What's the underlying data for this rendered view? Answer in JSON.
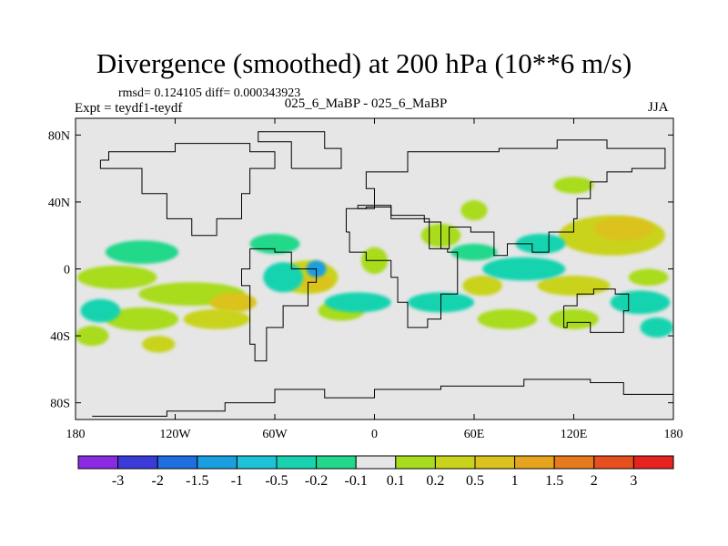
{
  "chart_data": {
    "type": "heatmap",
    "title": "Divergence (smoothed) at 200 hPa (10**6 m/s)",
    "stats_text": "rmsd= 0.124105 diff= 0.000343923",
    "experiment_text": "Expt = teydf1-teydf",
    "subtitle": "025_6_MaBP - 025_6_MaBP",
    "season": "JJA",
    "x_range": [
      -180,
      180
    ],
    "y_range": [
      -90,
      90
    ],
    "x_ticks": [
      {
        "value": -180,
        "label": "180"
      },
      {
        "value": -120,
        "label": "120W"
      },
      {
        "value": -60,
        "label": "60W"
      },
      {
        "value": 0,
        "label": "0"
      },
      {
        "value": 60,
        "label": "60E"
      },
      {
        "value": 120,
        "label": "120E"
      },
      {
        "value": 180,
        "label": "180"
      }
    ],
    "y_ticks": [
      {
        "value": 80,
        "label": "80N"
      },
      {
        "value": 40,
        "label": "40N"
      },
      {
        "value": 0,
        "label": "0"
      },
      {
        "value": -40,
        "label": "40S"
      },
      {
        "value": -80,
        "label": "80S"
      }
    ],
    "colorbar": {
      "colors": [
        "#8a2be2",
        "#3b3bd9",
        "#1f6fe0",
        "#1a9fe0",
        "#1fc3d8",
        "#19d3b0",
        "#22d88a",
        "#e6e6e6",
        "#a8dc1e",
        "#c9d31c",
        "#dcc21e",
        "#e6a41e",
        "#e67b1e",
        "#e6501e",
        "#e6231e"
      ],
      "labels": [
        "-3",
        "-2",
        "-1.5",
        "-1",
        "-0.5",
        "-0.2",
        "-0.1",
        "0.1",
        "0.2",
        "0.5",
        "1",
        "1.5",
        "2",
        "3"
      ]
    },
    "field_background_color": "#e6e6e6",
    "features": [
      {
        "type": "ellipse",
        "lon": -155,
        "lat": -5,
        "rx": 24,
        "ry": 7,
        "level": 8
      },
      {
        "type": "ellipse",
        "lon": -110,
        "lat": -15,
        "rx": 32,
        "ry": 7,
        "level": 8
      },
      {
        "type": "ellipse",
        "lon": -85,
        "lat": -20,
        "rx": 14,
        "ry": 6,
        "level": 10
      },
      {
        "type": "ellipse",
        "lon": -140,
        "lat": -30,
        "rx": 22,
        "ry": 7,
        "level": 8
      },
      {
        "type": "ellipse",
        "lon": -95,
        "lat": -30,
        "rx": 20,
        "ry": 6,
        "level": 9
      },
      {
        "type": "ellipse",
        "lon": -40,
        "lat": -5,
        "rx": 18,
        "ry": 10,
        "level": 9
      },
      {
        "type": "ellipse",
        "lon": -35,
        "lat": -8,
        "rx": 10,
        "ry": 5,
        "level": 10
      },
      {
        "type": "ellipse",
        "lon": -170,
        "lat": -40,
        "rx": 10,
        "ry": 6,
        "level": 8
      },
      {
        "type": "ellipse",
        "lon": -130,
        "lat": -45,
        "rx": 10,
        "ry": 5,
        "level": 9
      },
      {
        "type": "ellipse",
        "lon": -20,
        "lat": -25,
        "rx": 14,
        "ry": 6,
        "level": 8
      },
      {
        "type": "ellipse",
        "lon": 0,
        "lat": 5,
        "rx": 8,
        "ry": 8,
        "level": 8
      },
      {
        "type": "ellipse",
        "lon": 40,
        "lat": 20,
        "rx": 12,
        "ry": 7,
        "level": 8
      },
      {
        "type": "ellipse",
        "lon": 65,
        "lat": -10,
        "rx": 12,
        "ry": 6,
        "level": 9
      },
      {
        "type": "ellipse",
        "lon": 80,
        "lat": -30,
        "rx": 18,
        "ry": 6,
        "level": 8
      },
      {
        "type": "ellipse",
        "lon": 120,
        "lat": -10,
        "rx": 22,
        "ry": 6,
        "level": 9
      },
      {
        "type": "ellipse",
        "lon": 120,
        "lat": -30,
        "rx": 15,
        "ry": 6,
        "level": 8
      },
      {
        "type": "ellipse",
        "lon": 143,
        "lat": 20,
        "rx": 32,
        "ry": 12,
        "level": 9
      },
      {
        "type": "ellipse",
        "lon": 150,
        "lat": 24,
        "rx": 18,
        "ry": 7,
        "level": 10
      },
      {
        "type": "ellipse",
        "lon": 120,
        "lat": 50,
        "rx": 12,
        "ry": 5,
        "level": 8
      },
      {
        "type": "ellipse",
        "lon": 165,
        "lat": -5,
        "rx": 12,
        "ry": 5,
        "level": 8
      },
      {
        "type": "ellipse",
        "lon": 60,
        "lat": 35,
        "rx": 8,
        "ry": 6,
        "level": 8
      },
      {
        "type": "ellipse",
        "lon": -140,
        "lat": 10,
        "rx": 22,
        "ry": 7,
        "level": 6
      },
      {
        "type": "ellipse",
        "lon": -165,
        "lat": -25,
        "rx": 12,
        "ry": 7,
        "level": 5
      },
      {
        "type": "ellipse",
        "lon": -55,
        "lat": -5,
        "rx": 12,
        "ry": 9,
        "level": 5
      },
      {
        "type": "ellipse",
        "lon": -35,
        "lat": 0,
        "rx": 6,
        "ry": 5,
        "level": 3
      },
      {
        "type": "ellipse",
        "lon": -10,
        "lat": -20,
        "rx": 20,
        "ry": 6,
        "level": 5
      },
      {
        "type": "ellipse",
        "lon": 40,
        "lat": -20,
        "rx": 20,
        "ry": 6,
        "level": 5
      },
      {
        "type": "ellipse",
        "lon": 90,
        "lat": 0,
        "rx": 25,
        "ry": 7,
        "level": 5
      },
      {
        "type": "ellipse",
        "lon": 160,
        "lat": -20,
        "rx": 18,
        "ry": 7,
        "level": 5
      },
      {
        "type": "ellipse",
        "lon": 170,
        "lat": -35,
        "rx": 10,
        "ry": 6,
        "level": 5
      },
      {
        "type": "ellipse",
        "lon": 100,
        "lat": 15,
        "rx": 15,
        "ry": 6,
        "level": 5
      },
      {
        "type": "ellipse",
        "lon": -60,
        "lat": 15,
        "rx": 15,
        "ry": 6,
        "level": 6
      },
      {
        "type": "ellipse",
        "lon": 60,
        "lat": 10,
        "rx": 14,
        "ry": 5,
        "level": 6
      }
    ],
    "continent_outlines": [
      [
        [
          -170,
          -88
        ],
        [
          -125,
          -85
        ],
        [
          -90,
          -80
        ],
        [
          -60,
          -72
        ],
        [
          -30,
          -77
        ],
        [
          0,
          -72
        ],
        [
          40,
          -70
        ],
        [
          90,
          -66
        ],
        [
          130,
          -68
        ],
        [
          150,
          -75
        ],
        [
          180,
          -80
        ]
      ],
      [
        [
          -165,
          65
        ],
        [
          -160,
          70
        ],
        [
          -140,
          70
        ],
        [
          -120,
          75
        ],
        [
          -90,
          75
        ],
        [
          -75,
          70
        ],
        [
          -60,
          60
        ],
        [
          -75,
          45
        ],
        [
          -80,
          30
        ],
        [
          -95,
          20
        ],
        [
          -105,
          20
        ],
        [
          -110,
          30
        ],
        [
          -125,
          45
        ],
        [
          -140,
          60
        ],
        [
          -165,
          65
        ]
      ],
      [
        [
          -75,
          12
        ],
        [
          -60,
          10
        ],
        [
          -50,
          0
        ],
        [
          -35,
          -8
        ],
        [
          -40,
          -22
        ],
        [
          -55,
          -35
        ],
        [
          -65,
          -55
        ],
        [
          -72,
          -45
        ],
        [
          -75,
          -10
        ],
        [
          -80,
          0
        ],
        [
          -75,
          12
        ]
      ],
      [
        [
          -50,
          60
        ],
        [
          -40,
          60
        ],
        [
          -20,
          72
        ],
        [
          -30,
          82
        ],
        [
          -60,
          82
        ],
        [
          -70,
          76
        ],
        [
          -50,
          60
        ]
      ],
      [
        [
          -10,
          36
        ],
        [
          0,
          48
        ],
        [
          -5,
          58
        ],
        [
          20,
          70
        ],
        [
          40,
          70
        ],
        [
          75,
          72
        ],
        [
          110,
          77
        ],
        [
          140,
          72
        ],
        [
          175,
          68
        ],
        [
          175,
          60
        ],
        [
          155,
          58
        ],
        [
          140,
          52
        ],
        [
          130,
          42
        ],
        [
          122,
          30
        ],
        [
          120,
          22
        ],
        [
          105,
          10
        ],
        [
          95,
          15
        ],
        [
          80,
          8
        ],
        [
          72,
          22
        ],
        [
          58,
          25
        ],
        [
          45,
          12
        ],
        [
          40,
          28
        ],
        [
          30,
          32
        ],
        [
          10,
          38
        ],
        [
          -10,
          36
        ]
      ],
      [
        [
          -17,
          22
        ],
        [
          -15,
          10
        ],
        [
          -5,
          5
        ],
        [
          10,
          4
        ],
        [
          10,
          -5
        ],
        [
          14,
          -20
        ],
        [
          20,
          -35
        ],
        [
          32,
          -30
        ],
        [
          40,
          -15
        ],
        [
          50,
          10
        ],
        [
          44,
          12
        ],
        [
          33,
          30
        ],
        [
          10,
          37
        ],
        [
          -5,
          36
        ],
        [
          -17,
          22
        ]
      ],
      [
        [
          114,
          -22
        ],
        [
          122,
          -15
        ],
        [
          132,
          -12
        ],
        [
          140,
          -12
        ],
        [
          145,
          -15
        ],
        [
          153,
          -25
        ],
        [
          150,
          -38
        ],
        [
          140,
          -38
        ],
        [
          130,
          -32
        ],
        [
          116,
          -35
        ],
        [
          114,
          -22
        ]
      ]
    ]
  }
}
